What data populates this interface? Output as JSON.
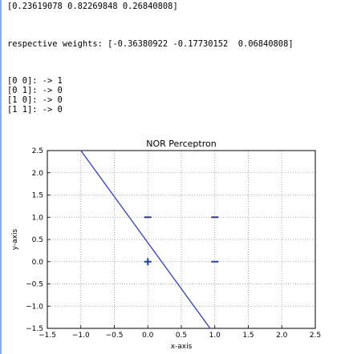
{
  "output": {
    "weights_line": "[0.23619078 0.82269848 0.26840808]",
    "respective_line": "respective weights: [-0.36380922 -0.17730152  0.06840808]",
    "predictions": [
      "[0 0]: -> 1",
      "[0 1]: -> 0",
      "[1 0]: -> 0",
      "[1 1]: -> 0"
    ]
  },
  "chart_data": {
    "type": "scatter",
    "title": "NOR Perceptron",
    "xlabel": "x-axis",
    "ylabel": "y-axis",
    "xlim": [
      -1.5,
      2.5
    ],
    "ylim": [
      -1.5,
      2.5
    ],
    "grid": true,
    "xticks": [
      -1.5,
      -1.0,
      -0.5,
      0.0,
      0.5,
      1.0,
      1.5,
      2.0,
      2.5
    ],
    "yticks": [
      -1.5,
      -1.0,
      -0.5,
      0.0,
      0.5,
      1.0,
      1.5,
      2.0,
      2.5
    ],
    "xtick_labels": [
      "−1.5",
      "−1.0",
      "−0.5",
      "0.0",
      "0.5",
      "1.0",
      "1.5",
      "2.0",
      "2.5"
    ],
    "ytick_labels": [
      "−1.5",
      "−1.0",
      "−0.5",
      "0.0",
      "0.5",
      "1.0",
      "1.5",
      "2.0",
      "2.5"
    ],
    "points": [
      {
        "x": 0,
        "y": 0,
        "marker": "+"
      },
      {
        "x": 0,
        "y": 1,
        "marker": "−"
      },
      {
        "x": 1,
        "y": 0,
        "marker": "−"
      },
      {
        "x": 1,
        "y": 1,
        "marker": "−"
      }
    ],
    "decision_boundary": {
      "x": [
        -1.0,
        0.93
      ],
      "y": [
        2.5,
        -1.5
      ]
    },
    "colors": {
      "points": "#1f3f9a",
      "line": "#2b3fd6"
    }
  }
}
